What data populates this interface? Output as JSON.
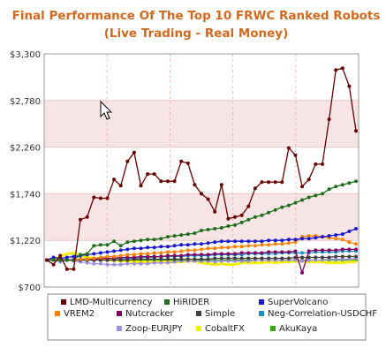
{
  "chart_data": {
    "type": "line",
    "title": "Final Performance Of The Top 10 FRWC Ranked Robots",
    "subtitle": "(Live Trading - Real Money)",
    "xlabel": "",
    "ylabel": "",
    "ylim": [
      700,
      3300
    ],
    "y_ticks": [
      "$3,300",
      "$2,780",
      "$2,260",
      "$1,740",
      "$1,220",
      "$700"
    ],
    "y_tick_values": [
      3300,
      2780,
      2260,
      1740,
      1220,
      700
    ],
    "grid": true,
    "legend_position": "bottom",
    "series": [
      {
        "name": "LMD-Multicurrency",
        "color": "#6b0000",
        "values": [
          1000,
          950,
          1050,
          900,
          900,
          1450,
          1480,
          1700,
          1690,
          1690,
          1900,
          1830,
          2100,
          2200,
          1830,
          1960,
          1960,
          1880,
          1880,
          1880,
          2100,
          2080,
          1840,
          1740,
          1680,
          1540,
          1840,
          1460,
          1480,
          1500,
          1600,
          1800,
          1870,
          1870,
          1870,
          1870,
          2250,
          2170,
          1820,
          1900,
          2070,
          2070,
          2570,
          3120,
          3140,
          2940,
          2440
        ]
      },
      {
        "name": "HiRIDER",
        "color": "#1f6f1f",
        "values": [
          1000,
          1000,
          1000,
          1000,
          1000,
          1060,
          1070,
          1160,
          1170,
          1170,
          1210,
          1160,
          1200,
          1210,
          1220,
          1230,
          1230,
          1240,
          1260,
          1270,
          1280,
          1290,
          1300,
          1330,
          1340,
          1350,
          1360,
          1380,
          1390,
          1420,
          1450,
          1480,
          1500,
          1530,
          1560,
          1590,
          1610,
          1640,
          1670,
          1700,
          1720,
          1740,
          1790,
          1820,
          1840,
          1860,
          1880
        ]
      },
      {
        "name": "SuperVolcano",
        "color": "#1a1acc",
        "values": [
          1000,
          1030,
          1020,
          1030,
          1040,
          1050,
          1060,
          1070,
          1080,
          1090,
          1100,
          1110,
          1120,
          1130,
          1130,
          1140,
          1140,
          1150,
          1150,
          1160,
          1170,
          1170,
          1180,
          1180,
          1190,
          1200,
          1210,
          1210,
          1210,
          1210,
          1210,
          1210,
          1210,
          1220,
          1220,
          1220,
          1230,
          1230,
          1240,
          1240,
          1250,
          1260,
          1270,
          1280,
          1290,
          1320,
          1350
        ]
      },
      {
        "name": "VREM2",
        "color": "#ff7f00",
        "values": [
          1000,
          1000,
          1000,
          1000,
          1000,
          1010,
          1010,
          1020,
          1030,
          1040,
          1040,
          1050,
          1060,
          1060,
          1070,
          1070,
          1080,
          1080,
          1090,
          1090,
          1100,
          1110,
          1110,
          1120,
          1130,
          1130,
          1140,
          1140,
          1150,
          1150,
          1160,
          1160,
          1170,
          1170,
          1180,
          1180,
          1190,
          1200,
          1260,
          1270,
          1270,
          1260,
          1250,
          1240,
          1230,
          1200,
          1180
        ]
      },
      {
        "name": "Nutcracker",
        "color": "#800060",
        "values": [
          1000,
          1000,
          1000,
          1000,
          1000,
          1010,
          1010,
          1010,
          1020,
          1020,
          1020,
          1030,
          1030,
          1030,
          1040,
          1040,
          1040,
          1040,
          1050,
          1050,
          1050,
          1060,
          1060,
          1060,
          1060,
          1070,
          1070,
          1070,
          1070,
          1080,
          1080,
          1080,
          1080,
          1090,
          1090,
          1090,
          1090,
          1100,
          860,
          1100,
          1110,
          1110,
          1110,
          1110,
          1120,
          1120,
          1120
        ]
      },
      {
        "name": "Simple",
        "color": "#404040",
        "values": [
          1000,
          1000,
          1000,
          1000,
          1000,
          1000,
          1000,
          1000,
          1000,
          1000,
          1000,
          1000,
          1000,
          1010,
          1010,
          1010,
          1010,
          1010,
          1010,
          1010,
          1010,
          1010,
          1010,
          1010,
          1010,
          1020,
          1020,
          1020,
          1020,
          1020,
          1020,
          1020,
          1020,
          1020,
          1020,
          1020,
          1020,
          1030,
          1030,
          1030,
          1030,
          1030,
          1030,
          1040,
          1040,
          1040,
          1040
        ]
      },
      {
        "name": "Neg-Correlation-USDCHF",
        "color": "#1e90c8",
        "values": [
          1000,
          1000,
          1000,
          1010,
          1000,
          1010,
          1010,
          1010,
          1020,
          1020,
          1020,
          1010,
          1020,
          1020,
          1030,
          1030,
          1030,
          1040,
          1040,
          1040,
          1040,
          1050,
          1050,
          1050,
          1050,
          1060,
          1060,
          1060,
          1060,
          1060,
          1070,
          1070,
          1070,
          1070,
          1070,
          1080,
          1080,
          1080,
          1080,
          1080,
          1090,
          1090,
          1090,
          1090,
          1100,
          1100,
          1100
        ]
      },
      {
        "name": "Zoop-EURJPY",
        "color": "#9f8fdf",
        "values": [
          1000,
          1000,
          980,
          1000,
          990,
          980,
          970,
          960,
          960,
          950,
          950,
          950,
          960,
          960,
          960,
          960,
          970,
          970,
          970,
          980,
          990,
          990,
          990,
          990,
          990,
          980,
          990,
          990,
          990,
          990,
          990,
          1000,
          1000,
          1000,
          1000,
          1000,
          1000,
          1000,
          990,
          1000,
          1000,
          1000,
          1010,
          1010,
          1010,
          1010,
          1020
        ]
      },
      {
        "name": "CobaltFX",
        "color": "#f2f000",
        "values": [
          1000,
          1010,
          1040,
          1070,
          1080,
          1050,
          1030,
          1020,
          1010,
          1000,
          1000,
          990,
          990,
          980,
          980,
          980,
          980,
          980,
          980,
          980,
          980,
          990,
          990,
          970,
          960,
          950,
          960,
          950,
          950,
          970,
          970,
          970,
          970,
          980,
          970,
          980,
          980,
          990,
          990,
          980,
          980,
          980,
          970,
          970,
          970,
          980,
          980
        ]
      },
      {
        "name": "AkuKaya",
        "color": "#33aa11",
        "values": [
          1000,
          1000,
          1000,
          1000,
          1000,
          1000,
          1000,
          1000,
          1000,
          1000,
          1000,
          1000,
          1000,
          1000,
          1000,
          1000,
          1000,
          1000,
          1000,
          1000,
          1000,
          1000,
          1000,
          1000,
          1000,
          1000,
          1000,
          1000,
          1000,
          1000,
          1000,
          1000,
          1000,
          1000,
          1000,
          1000,
          1000,
          1000,
          1000,
          1000,
          1000,
          1000,
          1000,
          1000,
          1000,
          1000,
          1000
        ]
      }
    ]
  }
}
